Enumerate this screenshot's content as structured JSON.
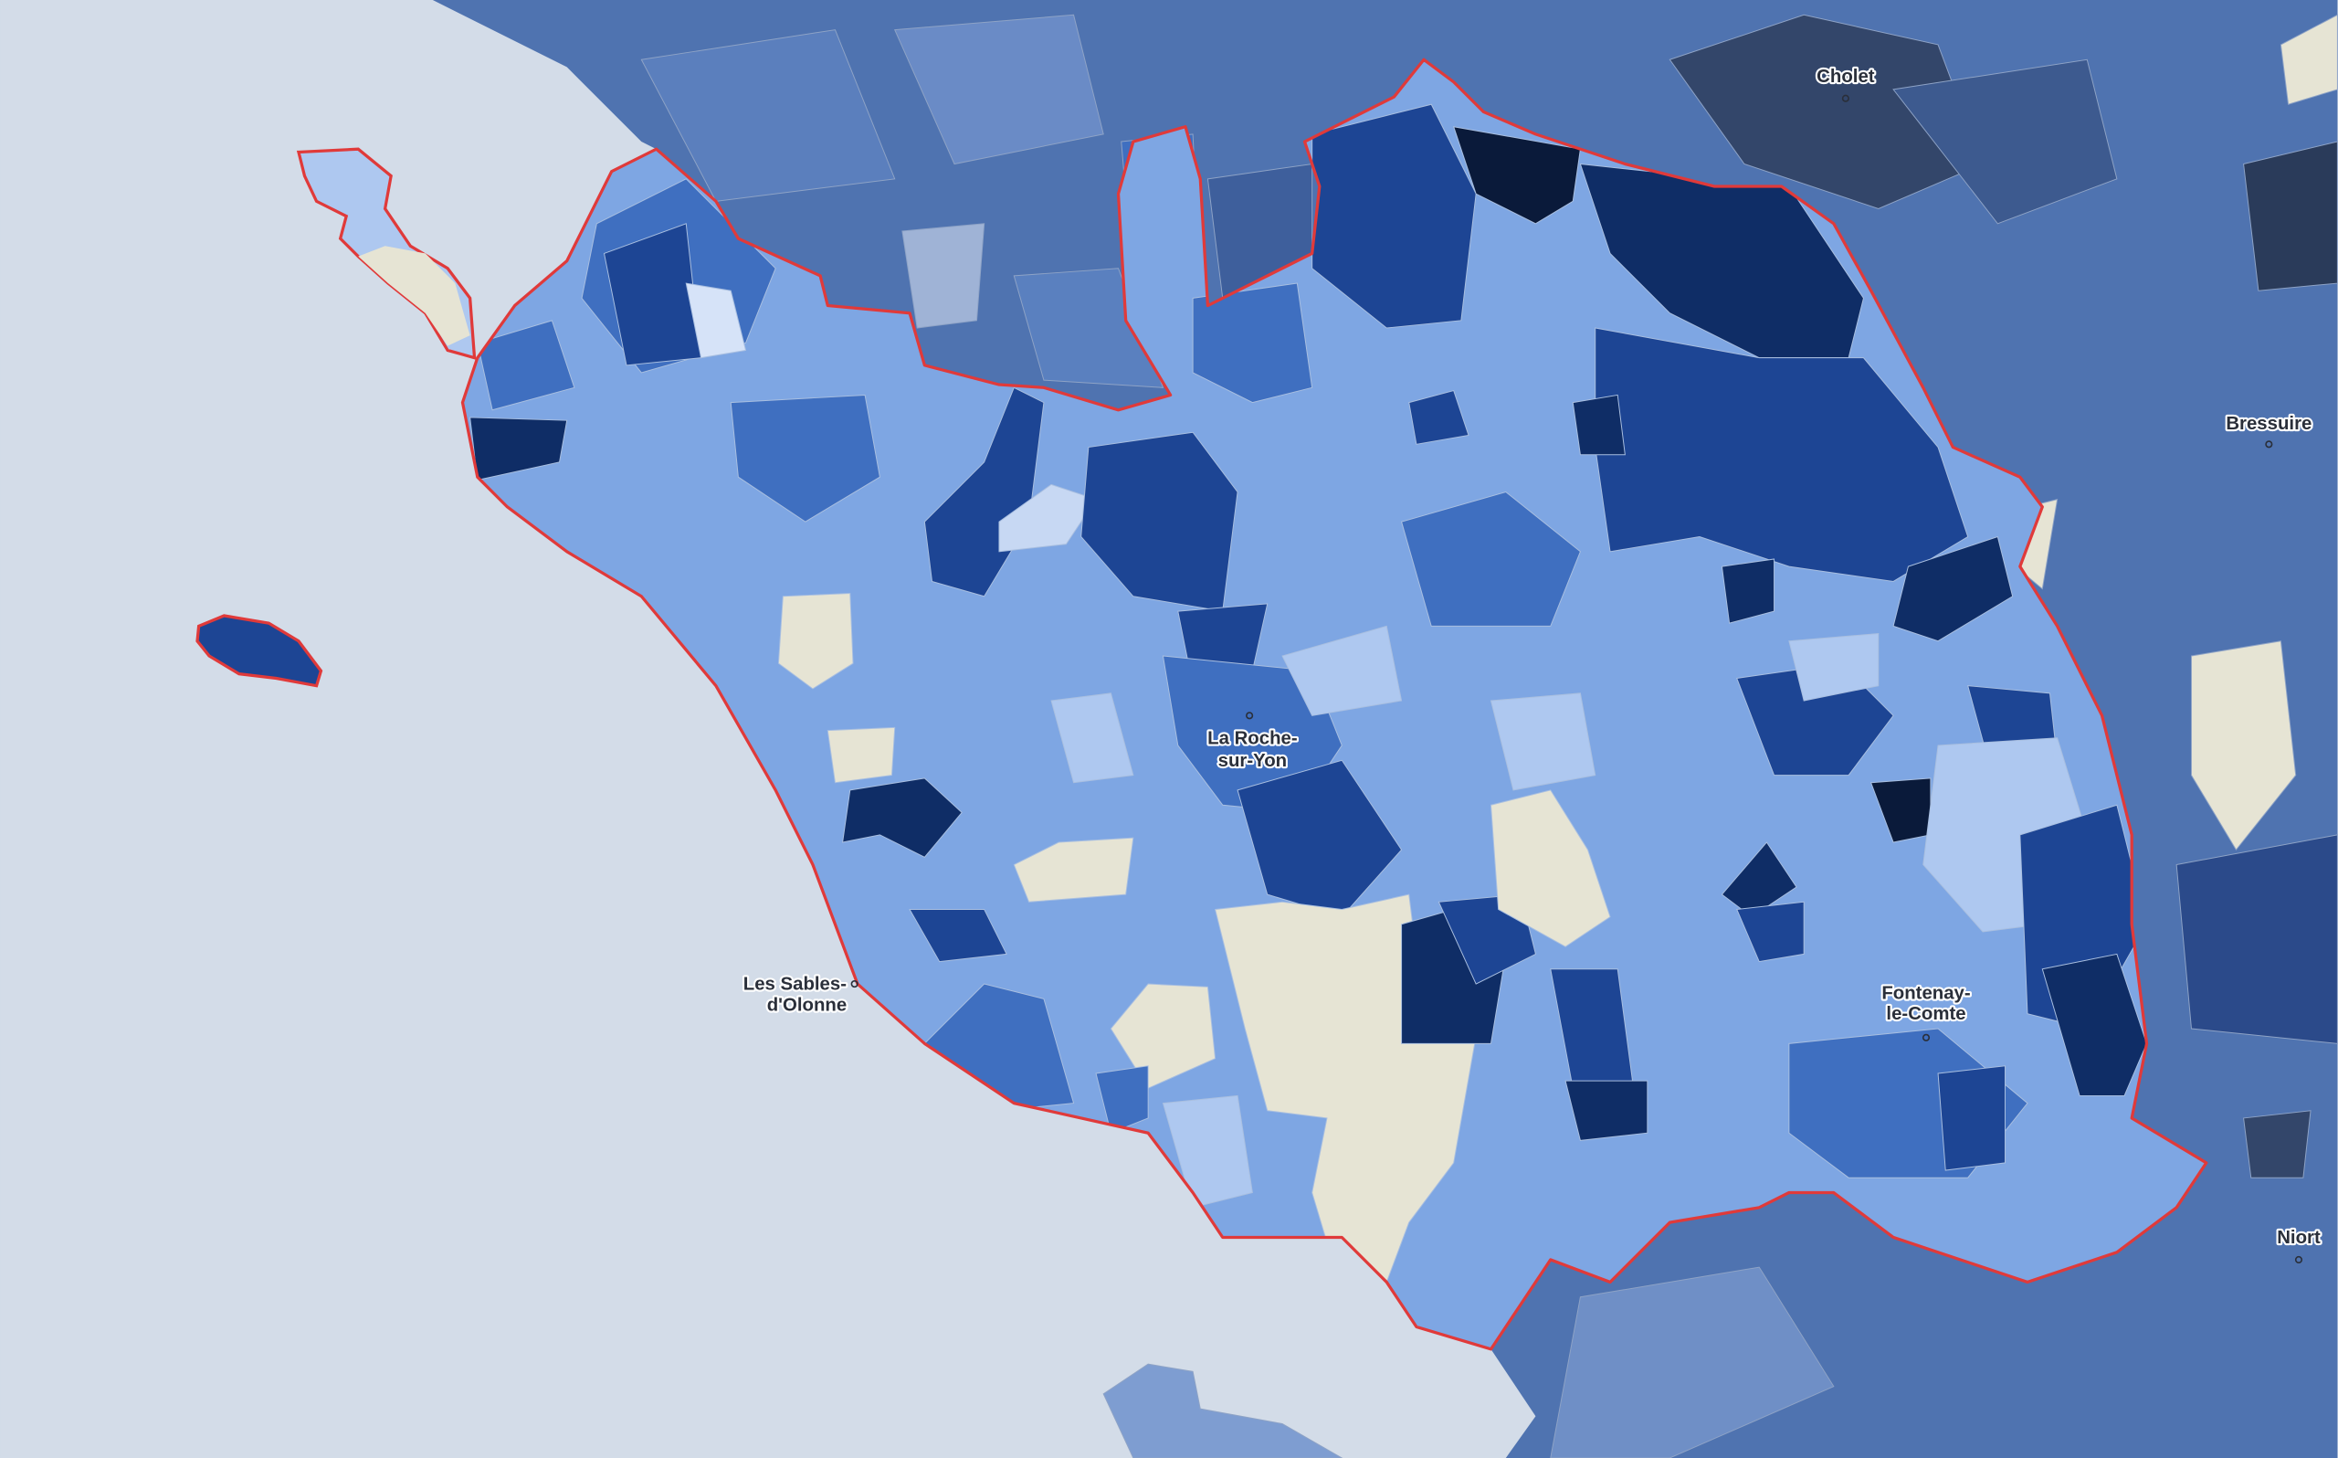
{
  "places": [
    {
      "lines": [
        "Cholet"
      ]
    },
    {
      "lines": [
        "Bressuire"
      ]
    },
    {
      "lines": [
        "La Roche-",
        "sur-Yon"
      ]
    },
    {
      "lines": [
        "Les Sables-",
        "d'Olonne"
      ]
    },
    {
      "lines": [
        "Fontenay-",
        "le-Comte"
      ]
    },
    {
      "lines": [
        "Niort"
      ]
    }
  ]
}
